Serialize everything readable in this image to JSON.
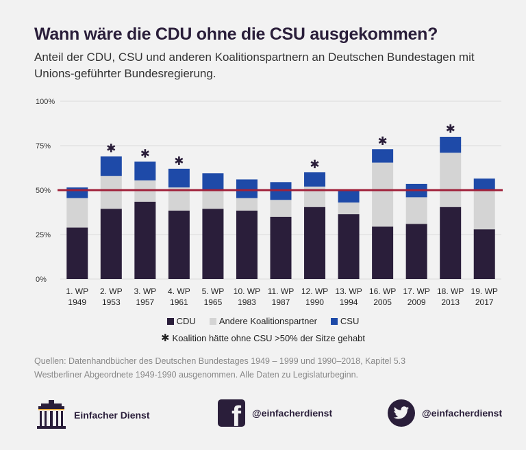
{
  "header": {
    "title": "Wann wäre die CDU ohne die CSU ausgekommen?",
    "subtitle": "Anteil der CDU, CSU und anderen Koalitionspartnern an Deutschen Bundestagen mit Unions-geführter Bundesregierung."
  },
  "chart_data": {
    "type": "bar",
    "stacked": true,
    "categories": [
      "1. WP|1949",
      "2. WP|1953",
      "3. WP|1957",
      "4. WP|1961",
      "5. WP|1965",
      "10. WP|1983",
      "11. WP|1987",
      "12. WP|1990",
      "13. WP|1994",
      "16. WP|2005",
      "17. WP|2009",
      "18. WP|2013",
      "19. WP|2017"
    ],
    "series": [
      {
        "name": "CDU",
        "values": [
          29,
          39.5,
          43.5,
          38.5,
          39.5,
          38.5,
          35,
          40.5,
          36.5,
          29.5,
          31,
          40.5,
          28
        ],
        "color": "#2a1e3a"
      },
      {
        "name": "Andere Koalitionspartner",
        "values": [
          16.5,
          18.5,
          12,
          13,
          10,
          7,
          9.5,
          11.5,
          6.5,
          36,
          15,
          30.5,
          22
        ],
        "color": "#d4d4d4"
      },
      {
        "name": "CSU",
        "values": [
          6,
          11,
          10.5,
          10.5,
          10,
          10.5,
          10,
          8,
          7.5,
          7.5,
          7.5,
          9,
          6.5
        ],
        "color": "#1e4aa8"
      }
    ],
    "stars": [
      false,
      true,
      true,
      true,
      false,
      false,
      false,
      true,
      false,
      true,
      false,
      true,
      false
    ],
    "ylim": [
      0,
      100
    ],
    "yticks": [
      0,
      25,
      50,
      75,
      100
    ],
    "ytick_labels": [
      "0%",
      "25%",
      "50%",
      "75%",
      "100%"
    ],
    "reference_line": {
      "value": 50,
      "color": "#a0213a"
    },
    "grid": true
  },
  "legend": {
    "cdu": "CDU",
    "andere": "Andere Koalitionspartner",
    "csu": "CSU",
    "star_note": "Koalition hätte ohne CSU >50% der Sitze gehabt"
  },
  "sources": {
    "line1": "Quellen: Datenhandbücher des Deutschen Bundestages 1949 – 1999 und 1990–2018, Kapitel 5.3",
    "line2": "Westberliner Abgeordnete 1949-1990 ausgenommen. Alle Daten zu Legislaturbeginn."
  },
  "footer": {
    "brand": "Einfacher Dienst",
    "facebook": "@einfacherdienst",
    "twitter": "@einfacherdienst"
  },
  "colors": {
    "cdu": "#2a1e3a",
    "andere": "#d4d4d4",
    "csu": "#1e4aa8",
    "line": "#a0213a"
  }
}
